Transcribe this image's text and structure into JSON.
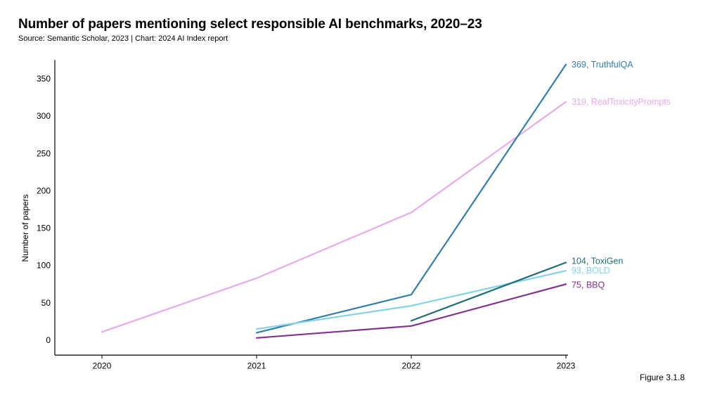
{
  "title": "Number of papers mentioning select responsible AI benchmarks, 2020–23",
  "subtitle": "Source: Semantic Scholar, 2023 | Chart: 2024 AI Index report",
  "figure": "Figure 3.1.8",
  "chart_data": {
    "type": "line",
    "title": "Number of papers mentioning select responsible AI benchmarks, 2020–23",
    "xlabel": "",
    "ylabel": "Number of papers",
    "x": [
      2020,
      2021,
      2022,
      2023
    ],
    "x_tick_labels": [
      "2020",
      "2021",
      "2022",
      "2023"
    ],
    "ylim": [
      -20,
      375
    ],
    "y_ticks": [
      0,
      50,
      100,
      150,
      200,
      250,
      300,
      350
    ],
    "y_tick_labels": [
      "0",
      "50",
      "100",
      "150",
      "200",
      "250",
      "300",
      "350"
    ],
    "grid": false,
    "series": [
      {
        "name": "RealToxicityPrompts",
        "color": "#e9a9ec",
        "x": [
          2020,
          2021,
          2022,
          2023
        ],
        "values": [
          11,
          83,
          171,
          319
        ],
        "end_label": "319, RealToxicityPrompts"
      },
      {
        "name": "TruthfulQA",
        "color": "#2f7fae",
        "x": [
          2021,
          2022,
          2023
        ],
        "values": [
          10,
          61,
          369
        ],
        "end_label": "369, TruthfulQA"
      },
      {
        "name": "BOLD",
        "color": "#84d3ea",
        "x": [
          2021,
          2022,
          2023
        ],
        "values": [
          15,
          46,
          93
        ],
        "end_label": "93, BOLD"
      },
      {
        "name": "ToxiGen",
        "color": "#1d6e76",
        "x": [
          2022,
          2023
        ],
        "values": [
          26,
          104
        ],
        "end_label": "104, ToxiGen"
      },
      {
        "name": "BBQ",
        "color": "#82338f",
        "x": [
          2021,
          2022,
          2023
        ],
        "values": [
          3,
          19,
          75
        ],
        "end_label": "75, BBQ"
      }
    ]
  }
}
